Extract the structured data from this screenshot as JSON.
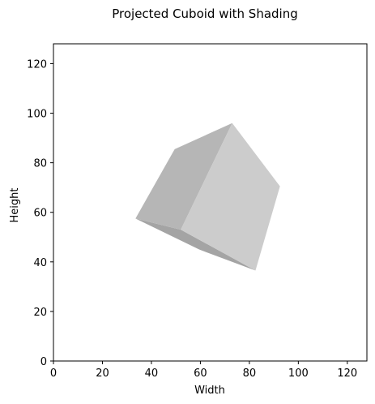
{
  "chart_data": {
    "type": "polygon",
    "title": "Projected Cuboid with Shading",
    "xlabel": "Width",
    "ylabel": "Height",
    "xlim": [
      0,
      128
    ],
    "ylim": [
      0,
      128
    ],
    "xticks": [
      0,
      20,
      40,
      60,
      80,
      100,
      120
    ],
    "yticks": [
      0,
      20,
      40,
      60,
      80,
      100,
      120
    ],
    "grid": false,
    "faces": [
      {
        "name": "bottom",
        "color": "#a4a4a4",
        "points": [
          [
            33.5,
            57.5
          ],
          [
            52,
            53
          ],
          [
            82.5,
            36.5
          ],
          [
            59.5,
            45
          ]
        ]
      },
      {
        "name": "left",
        "color": "#b6b6b6",
        "points": [
          [
            33.5,
            57.5
          ],
          [
            49.5,
            85.5
          ],
          [
            73,
            96
          ],
          [
            52,
            53
          ]
        ]
      },
      {
        "name": "front",
        "color": "#cccccc",
        "points": [
          [
            52,
            53
          ],
          [
            73,
            96
          ],
          [
            92.5,
            70.5
          ],
          [
            82.5,
            36.5
          ]
        ]
      }
    ]
  }
}
